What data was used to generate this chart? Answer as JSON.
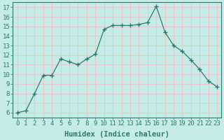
{
  "x": [
    0,
    1,
    2,
    3,
    4,
    5,
    6,
    7,
    8,
    9,
    10,
    11,
    12,
    13,
    14,
    15,
    16,
    17,
    18,
    19,
    20,
    21,
    22,
    23
  ],
  "y": [
    6.0,
    6.2,
    8.0,
    9.9,
    9.9,
    11.6,
    11.3,
    11.0,
    11.6,
    12.1,
    14.7,
    15.1,
    15.1,
    15.1,
    15.2,
    15.4,
    17.1,
    14.4,
    13.0,
    12.4,
    11.5,
    10.5,
    9.3,
    8.7
  ],
  "line_color": "#2d7a6e",
  "marker": "+",
  "marker_size": 4,
  "bg_color": "#c5ece6",
  "grid_color": "#e8c8c8",
  "xlabel": "Humidex (Indice chaleur)",
  "ylabel_ticks": [
    6,
    7,
    8,
    9,
    10,
    11,
    12,
    13,
    14,
    15,
    16,
    17
  ],
  "xlim": [
    -0.5,
    23.5
  ],
  "ylim": [
    5.5,
    17.5
  ],
  "xlabel_fontsize": 7.5,
  "tick_fontsize": 6.5,
  "tick_color": "#2d7a6e",
  "label_color": "#2d7a6e",
  "spine_color": "#2d7a6e"
}
